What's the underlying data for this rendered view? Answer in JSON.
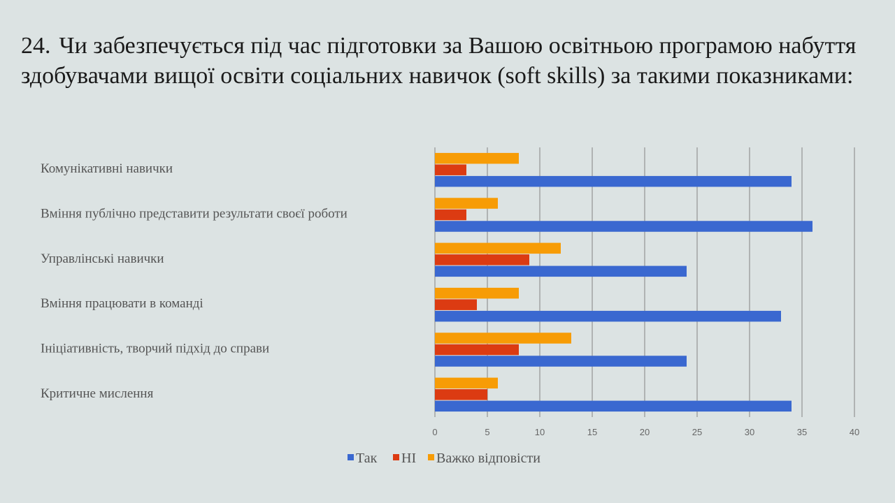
{
  "slide": {
    "number": "24.",
    "title": "Чи забезпечується під час підготовки за Вашою освітньою програмою набуття здобувачами вищої освіти соціальних навичок (soft skills) за такими показниками:"
  },
  "chart_data": {
    "type": "bar",
    "orientation": "horizontal",
    "categories": [
      "Комунікативні навички",
      "Вміння публічно представити результати своєї роботи",
      "Управлінські навички",
      "Вміння працювати в команді",
      "Ініціативність, творчий підхід до справи",
      "Критичне мислення"
    ],
    "series": [
      {
        "name": "Так",
        "color": "#3a68d0",
        "values": [
          34,
          36,
          24,
          33,
          24,
          34
        ]
      },
      {
        "name": "НІ",
        "color": "#dc3b12",
        "values": [
          3,
          3,
          9,
          4,
          8,
          5
        ]
      },
      {
        "name": "Важко відповісти",
        "color": "#f79c06",
        "values": [
          8,
          6,
          12,
          8,
          13,
          6
        ]
      }
    ],
    "xlim": [
      0,
      40
    ],
    "xticks": [
      "0",
      "5",
      "10",
      "15",
      "20",
      "25",
      "30",
      "35",
      "40"
    ],
    "grid": true,
    "legend": "bottom"
  }
}
